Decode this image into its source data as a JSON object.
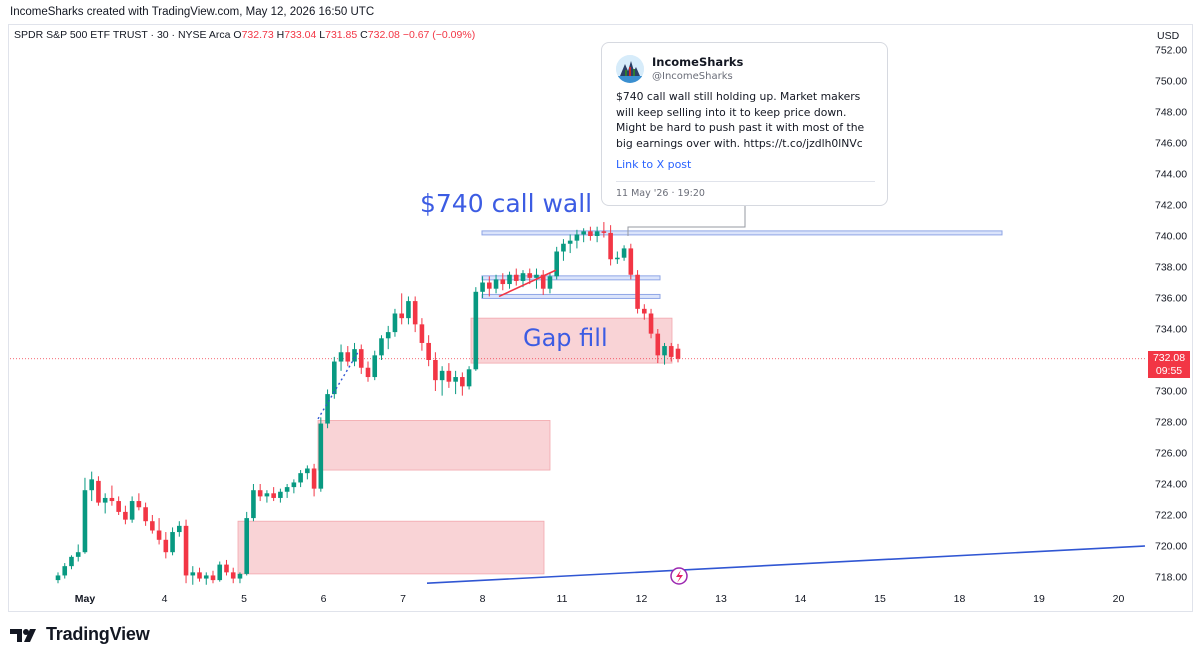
{
  "header": {
    "attribution": "IncomeSharks created with TradingView.com, May 12, 2026 16:50 UTC"
  },
  "legend": {
    "symbol": "SPDR S&P 500 ETF TRUST · 30 · NYSE Arca",
    "open_label": "O",
    "open": "732.73",
    "high_label": "H",
    "high": "733.04",
    "low_label": "L",
    "low": "731.85",
    "close_label": "C",
    "close": "732.08",
    "change": "−0.67 (−0.09%)"
  },
  "currency": "USD",
  "price_tag": {
    "price": "732.08",
    "countdown": "09:55"
  },
  "annotations": {
    "call_wall": "$740 call wall",
    "gap_fill": "Gap fill"
  },
  "tweet": {
    "name": "IncomeSharks",
    "handle": "@IncomeSharks",
    "text": "$740 call wall still holding up. Market makers will keep selling into it to keep price down. Might be hard to push past it with most of the big earnings over with. https://t.co/jzdlh0lNVc",
    "link": "Link to X post",
    "date": "11 May '26 · 19:20"
  },
  "footer": {
    "brand": "TradingView"
  },
  "colors": {
    "up": "#089981",
    "down": "#f23645",
    "zone": "#f8c8cc",
    "level": "#8fa6e6",
    "trendline": "#3056d3",
    "label": "#3c5ce3"
  },
  "chart_data": {
    "type": "candlestick",
    "interval": "30",
    "y_axis": {
      "range": [
        716.5,
        753.0
      ],
      "ticks": [
        718,
        720,
        722,
        724,
        726,
        728,
        730,
        732,
        734,
        736,
        738,
        740,
        742,
        744,
        746,
        748,
        750,
        752
      ],
      "unit": "USD"
    },
    "x_ticks": [
      "May",
      "4",
      "5",
      "6",
      "7",
      "8",
      "11",
      "12",
      "13",
      "14",
      "15",
      "18",
      "19",
      "20"
    ],
    "candles": [
      [
        717.8,
        718.3,
        717.6,
        718.1
      ],
      [
        718.1,
        718.9,
        717.9,
        718.7
      ],
      [
        718.7,
        719.4,
        718.5,
        719.3
      ],
      [
        719.3,
        720.1,
        719.0,
        719.6
      ],
      [
        719.6,
        724.4,
        719.5,
        723.6
      ],
      [
        723.6,
        724.8,
        722.9,
        724.3
      ],
      [
        724.2,
        724.5,
        722.6,
        722.8
      ],
      [
        722.8,
        723.4,
        722.1,
        723.1
      ],
      [
        723.1,
        723.9,
        722.6,
        722.9
      ],
      [
        722.9,
        723.2,
        722.0,
        722.2
      ],
      [
        722.2,
        722.6,
        721.4,
        721.7
      ],
      [
        721.7,
        723.2,
        721.5,
        722.9
      ],
      [
        722.9,
        723.4,
        722.3,
        722.5
      ],
      [
        722.5,
        722.8,
        721.3,
        721.6
      ],
      [
        721.6,
        722.0,
        720.8,
        721.0
      ],
      [
        721.0,
        721.8,
        720.1,
        720.4
      ],
      [
        720.4,
        720.9,
        719.2,
        719.6
      ],
      [
        719.6,
        721.2,
        719.4,
        720.9
      ],
      [
        720.9,
        721.6,
        720.6,
        721.3
      ],
      [
        721.3,
        721.7,
        717.6,
        718.1
      ],
      [
        718.1,
        718.7,
        717.5,
        718.3
      ],
      [
        718.3,
        718.6,
        717.7,
        717.9
      ],
      [
        717.9,
        718.3,
        717.5,
        718.1
      ],
      [
        718.1,
        718.4,
        717.6,
        717.8
      ],
      [
        717.8,
        719.0,
        717.7,
        718.8
      ],
      [
        718.8,
        719.1,
        718.1,
        718.3
      ],
      [
        718.3,
        718.6,
        717.6,
        717.9
      ],
      [
        717.9,
        718.3,
        717.6,
        718.2
      ],
      [
        718.2,
        722.2,
        718.1,
        721.8
      ],
      [
        721.8,
        724.0,
        721.6,
        723.6
      ],
      [
        723.6,
        724.0,
        722.9,
        723.2
      ],
      [
        723.2,
        723.6,
        722.8,
        723.4
      ],
      [
        723.4,
        723.8,
        722.9,
        723.1
      ],
      [
        723.1,
        723.7,
        722.8,
        723.5
      ],
      [
        723.5,
        724.0,
        723.1,
        723.8
      ],
      [
        723.8,
        724.3,
        723.4,
        724.1
      ],
      [
        724.1,
        724.9,
        723.8,
        724.7
      ],
      [
        724.7,
        725.2,
        724.3,
        725.0
      ],
      [
        725.0,
        725.3,
        723.2,
        723.7
      ],
      [
        723.7,
        728.3,
        723.5,
        727.9
      ],
      [
        727.9,
        730.1,
        727.6,
        729.8
      ],
      [
        729.8,
        732.2,
        729.5,
        731.9
      ],
      [
        731.9,
        733.0,
        731.3,
        732.5
      ],
      [
        732.5,
        732.9,
        731.6,
        731.9
      ],
      [
        731.9,
        733.1,
        731.6,
        732.7
      ],
      [
        732.7,
        733.0,
        731.1,
        731.5
      ],
      [
        731.5,
        731.9,
        730.6,
        730.9
      ],
      [
        730.9,
        732.6,
        730.7,
        732.3
      ],
      [
        732.3,
        733.6,
        732.0,
        733.4
      ],
      [
        733.4,
        734.2,
        732.7,
        733.8
      ],
      [
        733.8,
        735.3,
        733.5,
        735.0
      ],
      [
        735.0,
        736.3,
        734.3,
        734.7
      ],
      [
        734.7,
        736.1,
        734.3,
        735.8
      ],
      [
        735.8,
        736.1,
        733.8,
        734.3
      ],
      [
        734.3,
        734.7,
        732.6,
        733.1
      ],
      [
        733.1,
        733.6,
        731.6,
        732.0
      ],
      [
        732.0,
        732.5,
        730.0,
        730.7
      ],
      [
        730.7,
        731.6,
        729.7,
        731.3
      ],
      [
        731.3,
        731.8,
        730.2,
        730.6
      ],
      [
        730.6,
        731.3,
        729.8,
        730.9
      ],
      [
        730.9,
        731.2,
        729.7,
        730.3
      ],
      [
        730.3,
        731.6,
        730.1,
        731.4
      ],
      [
        731.4,
        736.7,
        731.3,
        736.4
      ],
      [
        736.4,
        737.4,
        736.0,
        737.0
      ],
      [
        737.0,
        737.4,
        736.1,
        736.6
      ],
      [
        736.6,
        737.5,
        736.3,
        737.2
      ],
      [
        737.2,
        737.6,
        736.5,
        736.9
      ],
      [
        736.9,
        737.7,
        736.6,
        737.5
      ],
      [
        737.5,
        737.9,
        736.8,
        737.1
      ],
      [
        737.1,
        737.8,
        736.7,
        737.6
      ],
      [
        737.6,
        737.9,
        736.9,
        737.3
      ],
      [
        737.3,
        737.9,
        736.6,
        737.5
      ],
      [
        737.5,
        737.8,
        736.2,
        736.6
      ],
      [
        736.6,
        737.6,
        736.3,
        737.4
      ],
      [
        737.4,
        739.3,
        737.2,
        739.0
      ],
      [
        739.0,
        739.8,
        738.4,
        739.5
      ],
      [
        739.5,
        740.1,
        738.9,
        739.7
      ],
      [
        739.7,
        740.4,
        739.2,
        740.1
      ],
      [
        740.1,
        740.5,
        739.6,
        740.3
      ],
      [
        740.3,
        740.6,
        739.7,
        740.0
      ],
      [
        740.0,
        740.6,
        739.6,
        740.3
      ],
      [
        740.3,
        740.9,
        739.9,
        740.2
      ],
      [
        740.2,
        740.7,
        738.1,
        738.5
      ],
      [
        738.5,
        739.0,
        738.2,
        738.6
      ],
      [
        738.6,
        739.4,
        738.4,
        739.2
      ],
      [
        739.2,
        739.5,
        737.2,
        737.5
      ],
      [
        737.5,
        737.8,
        735.0,
        735.3
      ],
      [
        735.3,
        735.6,
        734.6,
        735.0
      ],
      [
        735.0,
        735.3,
        733.4,
        733.7
      ],
      [
        733.7,
        734.0,
        731.8,
        732.3
      ],
      [
        732.3,
        733.1,
        731.7,
        732.9
      ],
      [
        732.9,
        733.1,
        731.9,
        732.2
      ],
      [
        732.73,
        733.04,
        731.85,
        732.08
      ]
    ],
    "zones": [
      {
        "name": "gap-fill",
        "low": 731.8,
        "high": 734.7
      },
      {
        "name": "gap-mid",
        "low": 724.9,
        "high": 728.1
      },
      {
        "name": "gap-low",
        "low": 718.2,
        "high": 721.6
      }
    ],
    "levels": [
      {
        "name": "call-wall",
        "price": 740.2
      },
      {
        "name": "level-737",
        "price": 737.3
      },
      {
        "name": "level-736",
        "price": 736.1
      }
    ],
    "last_price": 732.08
  }
}
